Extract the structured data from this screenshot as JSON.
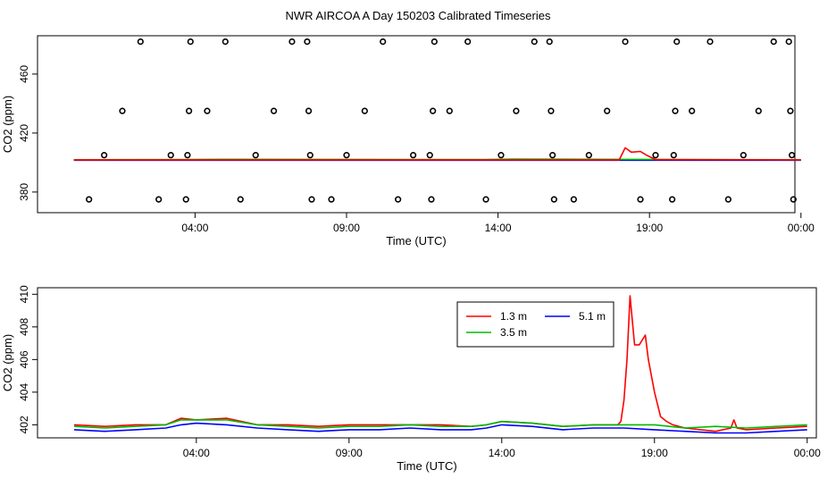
{
  "page": {
    "title": "NWR AIRCOA A  Day 150203  Calibrated Timeseries"
  },
  "colors": {
    "line_1_3m": "#ff0000",
    "line_3_5m": "#00bb00",
    "line_5_1m": "#0000ff",
    "markers": "#000000"
  },
  "chart_data": [
    {
      "type": "scatter",
      "title": "",
      "xlabel": "Time (UTC)",
      "ylabel": "CO2 (ppm)",
      "xlim": [
        -1.2,
        23.8
      ],
      "ylim": [
        366,
        486
      ],
      "x_ticks": [
        {
          "value": 4,
          "label": "04:00"
        },
        {
          "value": 9,
          "label": "09:00"
        },
        {
          "value": 14,
          "label": "14:00"
        },
        {
          "value": 19,
          "label": "19:00"
        },
        {
          "value": 24,
          "label": "00:00"
        }
      ],
      "y_ticks": [
        {
          "value": 380,
          "label": "380"
        },
        {
          "value": 420,
          "label": "420"
        },
        {
          "value": 460,
          "label": "460"
        }
      ],
      "grid": false,
      "markers": [
        {
          "x": 0.5,
          "y": 375
        },
        {
          "x": 1.0,
          "y": 405
        },
        {
          "x": 1.6,
          "y": 435
        },
        {
          "x": 2.2,
          "y": 482
        },
        {
          "x": 2.8,
          "y": 375
        },
        {
          "x": 3.2,
          "y": 405
        },
        {
          "x": 3.7,
          "y": 375
        },
        {
          "x": 3.75,
          "y": 405
        },
        {
          "x": 3.8,
          "y": 435
        },
        {
          "x": 3.85,
          "y": 482
        },
        {
          "x": 4.4,
          "y": 435
        },
        {
          "x": 5.0,
          "y": 482
        },
        {
          "x": 5.5,
          "y": 375
        },
        {
          "x": 6.0,
          "y": 405
        },
        {
          "x": 6.6,
          "y": 435
        },
        {
          "x": 7.2,
          "y": 482
        },
        {
          "x": 7.7,
          "y": 482
        },
        {
          "x": 7.75,
          "y": 435
        },
        {
          "x": 7.8,
          "y": 405
        },
        {
          "x": 7.85,
          "y": 375
        },
        {
          "x": 8.5,
          "y": 375
        },
        {
          "x": 9.0,
          "y": 405
        },
        {
          "x": 9.6,
          "y": 435
        },
        {
          "x": 10.2,
          "y": 482
        },
        {
          "x": 10.7,
          "y": 375
        },
        {
          "x": 11.2,
          "y": 405
        },
        {
          "x": 11.75,
          "y": 405
        },
        {
          "x": 11.8,
          "y": 375
        },
        {
          "x": 11.85,
          "y": 435
        },
        {
          "x": 11.9,
          "y": 482
        },
        {
          "x": 12.4,
          "y": 435
        },
        {
          "x": 13.0,
          "y": 482
        },
        {
          "x": 13.6,
          "y": 375
        },
        {
          "x": 14.1,
          "y": 405
        },
        {
          "x": 14.6,
          "y": 435
        },
        {
          "x": 15.2,
          "y": 482
        },
        {
          "x": 15.7,
          "y": 482
        },
        {
          "x": 15.75,
          "y": 435
        },
        {
          "x": 15.8,
          "y": 405
        },
        {
          "x": 15.85,
          "y": 375
        },
        {
          "x": 16.5,
          "y": 375
        },
        {
          "x": 17.0,
          "y": 405
        },
        {
          "x": 17.6,
          "y": 435
        },
        {
          "x": 18.2,
          "y": 482
        },
        {
          "x": 18.7,
          "y": 375
        },
        {
          "x": 19.2,
          "y": 405
        },
        {
          "x": 19.75,
          "y": 375
        },
        {
          "x": 19.8,
          "y": 405
        },
        {
          "x": 19.85,
          "y": 435
        },
        {
          "x": 19.9,
          "y": 482
        },
        {
          "x": 20.4,
          "y": 435
        },
        {
          "x": 21.0,
          "y": 482
        },
        {
          "x": 21.6,
          "y": 375
        },
        {
          "x": 22.1,
          "y": 405
        },
        {
          "x": 22.6,
          "y": 435
        },
        {
          "x": 23.1,
          "y": 482
        },
        {
          "x": 23.6,
          "y": 482
        },
        {
          "x": 23.65,
          "y": 435
        },
        {
          "x": 23.7,
          "y": 405
        },
        {
          "x": 23.75,
          "y": 375
        }
      ],
      "series": [
        {
          "color": "#0000ff",
          "x": [
            0.0,
            24.0
          ],
          "y": [
            401.6,
            401.6
          ]
        },
        {
          "color": "#00bb00",
          "x": [
            0.0,
            3.5,
            5.0,
            13.5,
            14.5,
            24.0
          ],
          "y": [
            401.9,
            402.0,
            402.2,
            402.0,
            402.3,
            401.9
          ]
        },
        {
          "color": "#ff0000",
          "x": [
            0.0,
            18.0,
            18.2,
            18.4,
            18.7,
            18.9,
            19.2,
            24.0
          ],
          "y": [
            401.8,
            401.8,
            410.0,
            407.0,
            407.5,
            405.0,
            402.0,
            401.8
          ]
        }
      ]
    },
    {
      "type": "line",
      "title": "",
      "xlabel": "Time (UTC)",
      "ylabel": "CO2 (ppm)",
      "xlim": [
        -1.2,
        24.3
      ],
      "ylim": [
        401.2,
        410.4
      ],
      "x_ticks": [
        {
          "value": 4,
          "label": "04:00"
        },
        {
          "value": 9,
          "label": "09:00"
        },
        {
          "value": 14,
          "label": "14:00"
        },
        {
          "value": 19,
          "label": "19:00"
        },
        {
          "value": 24,
          "label": "00:00"
        }
      ],
      "y_ticks": [
        {
          "value": 402,
          "label": "402"
        },
        {
          "value": 404,
          "label": "404"
        },
        {
          "value": 406,
          "label": "406"
        },
        {
          "value": 408,
          "label": "408"
        },
        {
          "value": 410,
          "label": "410"
        }
      ],
      "grid": false,
      "legend": {
        "position": "top-right-inset",
        "entries": [
          "1.3 m",
          "5.1 m",
          "3.5 m"
        ]
      },
      "series": [
        {
          "name": "1.3 m",
          "color": "#ff0000",
          "x": [
            0.0,
            1.0,
            2.0,
            3.0,
            3.5,
            4.0,
            5.0,
            6.0,
            7.0,
            8.0,
            9.0,
            10.0,
            11.0,
            12.0,
            13.0,
            13.5,
            14.0,
            15.0,
            16.0,
            17.0,
            17.8,
            17.9,
            18.0,
            18.1,
            18.2,
            18.35,
            18.5,
            18.7,
            18.8,
            19.0,
            19.2,
            19.4,
            19.6,
            20.0,
            21.0,
            21.5,
            21.6,
            21.7,
            22.0,
            23.0,
            24.0
          ],
          "y": [
            402.0,
            401.9,
            402.0,
            402.0,
            402.4,
            402.3,
            402.4,
            402.0,
            402.0,
            401.9,
            402.0,
            402.0,
            402.0,
            402.0,
            401.9,
            402.0,
            402.2,
            402.1,
            401.9,
            402.0,
            402.0,
            402.2,
            403.5,
            406.0,
            409.9,
            406.9,
            406.9,
            407.5,
            406.0,
            404.0,
            402.5,
            402.2,
            402.0,
            401.8,
            401.6,
            401.8,
            402.3,
            401.8,
            401.7,
            401.8,
            401.9
          ]
        },
        {
          "name": "5.1 m",
          "color": "#0000ff",
          "x": [
            0.0,
            1.0,
            2.0,
            3.0,
            3.5,
            4.0,
            5.0,
            6.0,
            7.0,
            8.0,
            9.0,
            10.0,
            11.0,
            12.0,
            13.0,
            13.5,
            14.0,
            15.0,
            16.0,
            17.0,
            18.0,
            19.0,
            20.0,
            21.0,
            22.0,
            23.0,
            24.0
          ],
          "y": [
            401.7,
            401.6,
            401.7,
            401.8,
            402.0,
            402.1,
            402.0,
            401.8,
            401.7,
            401.6,
            401.7,
            401.7,
            401.8,
            401.7,
            401.7,
            401.8,
            402.0,
            401.9,
            401.7,
            401.8,
            401.8,
            401.7,
            401.6,
            401.5,
            401.5,
            401.6,
            401.7
          ]
        },
        {
          "name": "3.5 m",
          "color": "#00bb00",
          "x": [
            0.0,
            1.0,
            2.0,
            3.0,
            3.5,
            4.0,
            5.0,
            6.0,
            7.0,
            8.0,
            9.0,
            10.0,
            11.0,
            12.0,
            13.0,
            13.5,
            14.0,
            15.0,
            16.0,
            17.0,
            18.0,
            19.0,
            20.0,
            21.0,
            22.0,
            23.0,
            24.0
          ],
          "y": [
            401.9,
            401.8,
            401.9,
            402.0,
            402.3,
            402.3,
            402.3,
            402.0,
            401.9,
            401.8,
            401.9,
            401.9,
            402.0,
            401.9,
            401.9,
            402.0,
            402.2,
            402.1,
            401.9,
            402.0,
            402.0,
            402.0,
            401.8,
            401.9,
            401.8,
            401.9,
            402.0
          ]
        }
      ]
    }
  ]
}
